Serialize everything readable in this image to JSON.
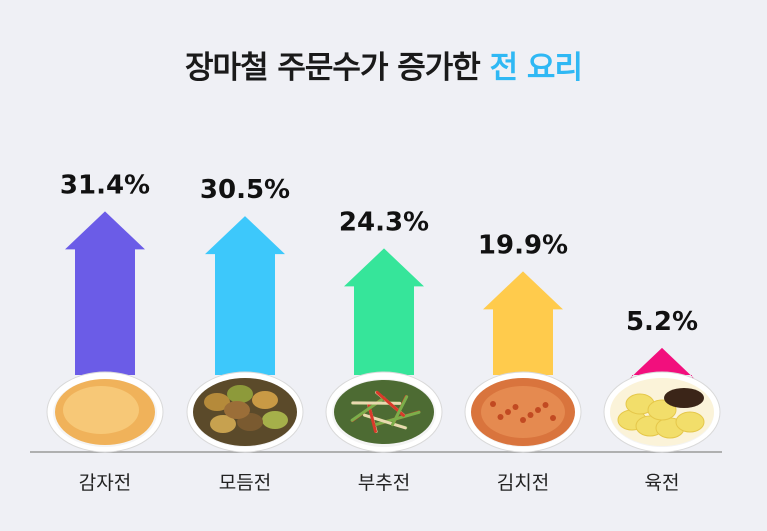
{
  "title": {
    "main": "장마철 주문수가 증가한 ",
    "accent": "전 요리"
  },
  "colors": {
    "accent": "#2fb8f4",
    "baseline": "#9a9a9a",
    "background": "#eff0f5"
  },
  "chart_data": {
    "type": "bar",
    "title": "장마철 주문수가 증가한 전 요리",
    "categories": [
      "감자전",
      "모듬전",
      "부추전",
      "김치전",
      "육전"
    ],
    "values": [
      31.4,
      30.5,
      24.3,
      19.9,
      5.2
    ],
    "value_labels": [
      "31.4%",
      "30.5%",
      "24.3%",
      "19.9%",
      "5.2%"
    ],
    "colors": [
      "#6b5ce7",
      "#3dc8fb",
      "#36e59a",
      "#ffcb4c",
      "#f20f7d"
    ],
    "icons": [
      "potato-pancake-icon",
      "assorted-jeon-icon",
      "chive-pancake-icon",
      "kimchi-pancake-icon",
      "beef-pancake-icon"
    ],
    "xlabel": "",
    "ylabel": "",
    "grid": false,
    "legend": "none"
  }
}
